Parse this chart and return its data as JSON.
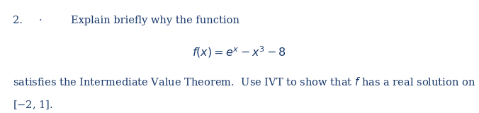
{
  "number": "2.",
  "dot": "·",
  "line1": "Explain briefly why the function",
  "formula": "$f(x) = e^{x} - x^3 - 8$",
  "line2": "satisfies the Intermediate Value Theorem.  Use IVT to show that $f$ has a real solution on",
  "line3": "[$-$2, 1].",
  "bg_color": "#ffffff",
  "text_color": "#1a3a6b",
  "number_color": "#1a3a6b",
  "font_size_main": 10.5,
  "font_size_formula": 11.5
}
